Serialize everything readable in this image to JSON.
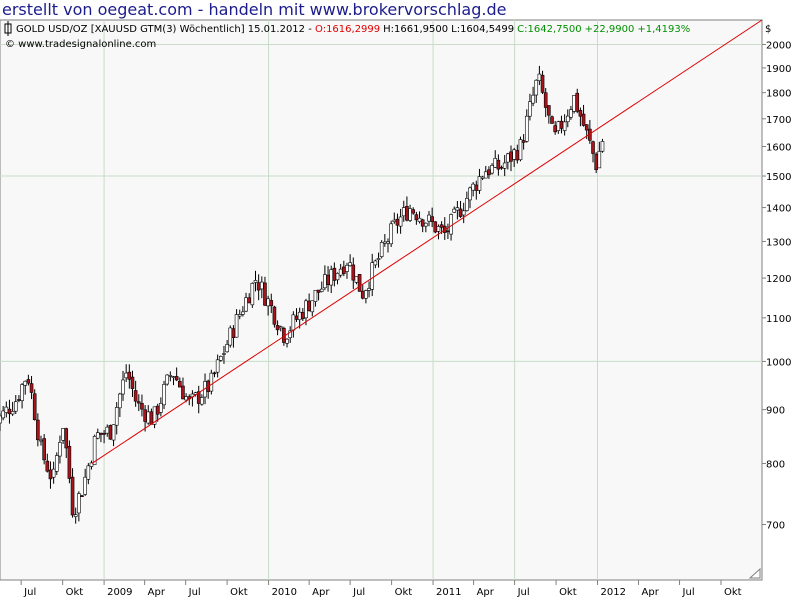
{
  "banner": "erstellt von oegeat.com - handeln mit www.brokervorschlag.de",
  "header": {
    "instrument": "GOLD USD/OZ [XAUUSD GTM(3)  Wöchentlich] 15.01.2012 - ",
    "open": "O:1616,2999",
    "high": "H:1661,9500",
    "low": "L:1604,5499",
    "close": "C:1642,7500",
    "change": "+22,9900",
    "change_pct": "+1,4193%",
    "source": "© www.tradesignalonline.com"
  },
  "colors": {
    "banner": "#1c1c8c",
    "up_candle": "#ffffff",
    "down_candle": "#a8141c",
    "trendline": "#e00000",
    "open_text": "#e00000",
    "change_text": "#009000",
    "plot_bg": "#f8f8f8",
    "grid": "#c8dcc8"
  },
  "chart_data": {
    "type": "candlestick",
    "title": "GOLD USD/OZ [XAUUSD GTM(3) Wöchentlich] 15.01.2012",
    "xlabel": "",
    "ylabel": "$",
    "ylim": [
      620,
      2110
    ],
    "yscale": "log",
    "grid": true,
    "y_ticks": [
      700,
      800,
      900,
      1000,
      1100,
      1200,
      1300,
      1400,
      1500,
      1600,
      1700,
      1800,
      1900,
      2000
    ],
    "x_ticks": [
      "Jul",
      "Okt",
      "2009",
      "Apr",
      "Jul",
      "Okt",
      "2010",
      "Apr",
      "Jul",
      "Okt",
      "2011",
      "Apr",
      "Jul",
      "Okt",
      "2012",
      "Apr",
      "Jul",
      "Okt"
    ],
    "x_range": [
      "2008-05-15",
      "2012-12-31"
    ],
    "trendline": {
      "start": [
        "2008-12-05",
        800
      ],
      "end": [
        "2012-12-31",
        2110
      ]
    },
    "control_points": [
      [
        "2008-05-01",
        870
      ],
      [
        "2008-06-20",
        920
      ],
      [
        "2008-07-15",
        975
      ],
      [
        "2008-08-15",
        820
      ],
      [
        "2008-09-10",
        770
      ],
      [
        "2008-10-01",
        880
      ],
      [
        "2008-10-24",
        720
      ],
      [
        "2008-11-15",
        760
      ],
      [
        "2008-12-15",
        850
      ],
      [
        "2009-01-15",
        860
      ],
      [
        "2009-02-20",
        980
      ],
      [
        "2009-03-15",
        910
      ],
      [
        "2009-04-20",
        880
      ],
      [
        "2009-06-01",
        980
      ],
      [
        "2009-07-10",
        910
      ],
      [
        "2009-08-25",
        950
      ],
      [
        "2009-10-05",
        1050
      ],
      [
        "2009-12-04",
        1200
      ],
      [
        "2010-02-05",
        1060
      ],
      [
        "2010-04-10",
        1150
      ],
      [
        "2010-06-25",
        1250
      ],
      [
        "2010-07-28",
        1160
      ],
      [
        "2010-10-10",
        1350
      ],
      [
        "2010-11-10",
        1400
      ],
      [
        "2011-01-28",
        1320
      ],
      [
        "2011-04-25",
        1520
      ],
      [
        "2011-06-01",
        1530
      ],
      [
        "2011-07-15",
        1600
      ],
      [
        "2011-08-22",
        1860
      ],
      [
        "2011-09-26",
        1620
      ],
      [
        "2011-11-10",
        1780
      ],
      [
        "2011-12-29",
        1540
      ],
      [
        "2012-01-15",
        1642
      ]
    ]
  }
}
